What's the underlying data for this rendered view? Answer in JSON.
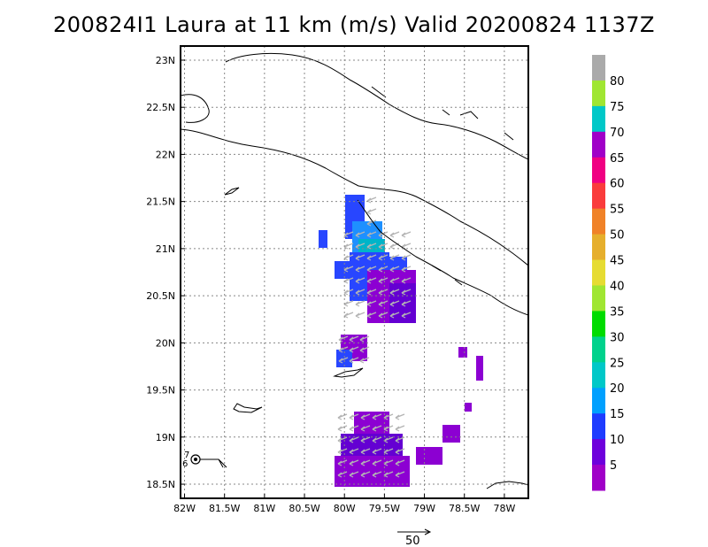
{
  "title": "200824I1 Laura at 11 km (m/s) Valid 20200824 1137Z",
  "map": {
    "lat_labels": [
      "23N",
      "22.5N",
      "22N",
      "21.5N",
      "21N",
      "20.5N",
      "20N",
      "19.5N",
      "19N",
      "18.5N"
    ],
    "lat_values": [
      23,
      22.5,
      22,
      21.5,
      21,
      20.5,
      20,
      19.5,
      19,
      18.5
    ],
    "lon_labels": [
      "82W",
      "81.5W",
      "81W",
      "80.5W",
      "80W",
      "79.5W",
      "79W",
      "78.5W",
      "78W"
    ],
    "lon_values": [
      -82,
      -81.5,
      -81,
      -80.5,
      -80,
      -79.5,
      -79,
      -78.5,
      -78
    ],
    "lon_range": [
      -82.05,
      -77.7
    ],
    "lat_range": [
      18.35,
      23.15
    ],
    "storm_labels": {
      "upper": "7",
      "lower": "6"
    }
  },
  "colorbar": {
    "labels": [
      "5",
      "10",
      "15",
      "20",
      "25",
      "30",
      "35",
      "40",
      "45",
      "50",
      "55",
      "60",
      "65",
      "70",
      "75",
      "80"
    ],
    "colors": [
      "#a000c8",
      "#6e00dc",
      "#1e3cff",
      "#00a0ff",
      "#00c8c8",
      "#00d28c",
      "#00dc00",
      "#a0e632",
      "#e6dc32",
      "#e6af2d",
      "#f08228",
      "#fa3c3c",
      "#f00082",
      "#a000c8",
      "#00c8c8",
      "#a0e632",
      "#aaaaaa"
    ]
  },
  "reference_vector": {
    "label": "50"
  },
  "colors": {
    "grid": "#888888",
    "arrow": "#b4b4b4",
    "coast": "#000000"
  }
}
